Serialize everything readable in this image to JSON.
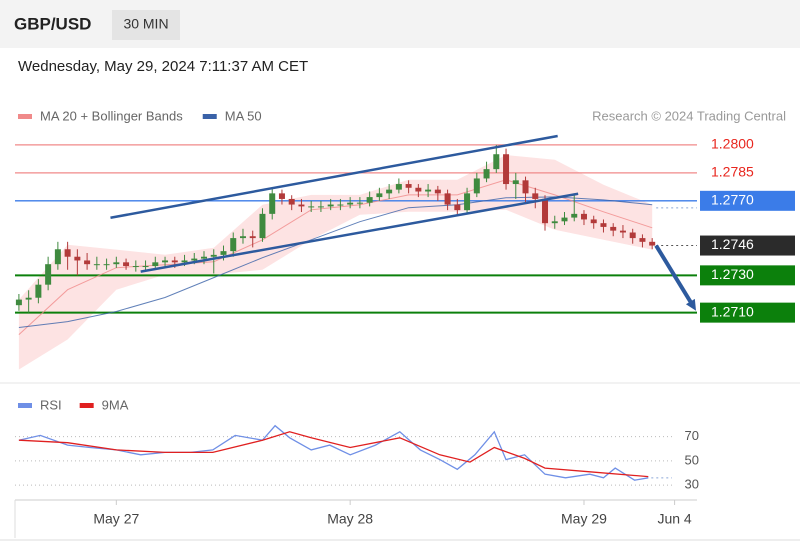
{
  "header": {
    "symbol": "GBP/USD",
    "interval": "30 MIN",
    "timestamp": "Wednesday, May 29, 2024 7:11:37 AM CET"
  },
  "chart_data": [
    {
      "type": "candlestick",
      "credit": "Research © 2024 Trading Central",
      "candles": {
        "up_color": "#3f8a3f",
        "down_color": "#b23a3a",
        "x": [
          -10,
          -9,
          -8,
          -7,
          -6,
          -5,
          -4,
          -3,
          -2,
          -1,
          0,
          1,
          2,
          3,
          4,
          5,
          6,
          7,
          8,
          9,
          10,
          11,
          12,
          13,
          14,
          15,
          16,
          17,
          18,
          19,
          20,
          21,
          22,
          23,
          24,
          25,
          26,
          27,
          28,
          29,
          30,
          31,
          32,
          33,
          34,
          35,
          36,
          37,
          38,
          39,
          40,
          41,
          42,
          43,
          44,
          45,
          46,
          47,
          48,
          49,
          50,
          51,
          52,
          53,
          54,
          55
        ],
        "open": [
          1.2714,
          1.2717,
          1.2718,
          1.2725,
          1.2736,
          1.2744,
          1.274,
          1.2738,
          1.2736,
          1.2736,
          1.2736,
          1.2737,
          1.2735,
          1.2735,
          1.2735,
          1.2737,
          1.2738,
          1.2737,
          1.2738,
          1.2739,
          1.274,
          1.2741,
          1.2743,
          1.275,
          1.2751,
          1.275,
          1.2763,
          1.2774,
          1.2771,
          1.2768,
          1.2767,
          1.2767,
          1.2767,
          1.2768,
          1.2768,
          1.2769,
          1.2769,
          1.2772,
          1.2774,
          1.2776,
          1.2779,
          1.2777,
          1.2775,
          1.2776,
          1.2774,
          1.2768,
          1.2765,
          1.2774,
          1.2782,
          1.2787,
          1.2795,
          1.2779,
          1.2781,
          1.2774,
          1.2771,
          1.2758,
          1.2759,
          1.2761,
          1.2763,
          1.276,
          1.2758,
          1.2756,
          1.2754,
          1.2753,
          1.275,
          1.2748
        ],
        "high": [
          1.272,
          1.2722,
          1.2728,
          1.274,
          1.2748,
          1.2748,
          1.2744,
          1.2742,
          1.274,
          1.2739,
          1.274,
          1.2739,
          1.2738,
          1.2738,
          1.274,
          1.274,
          1.274,
          1.2741,
          1.2742,
          1.2743,
          1.2744,
          1.2746,
          1.2753,
          1.2755,
          1.2754,
          1.2766,
          1.2777,
          1.2776,
          1.2773,
          1.2771,
          1.277,
          1.277,
          1.2771,
          1.2771,
          1.2772,
          1.2772,
          1.2775,
          1.2777,
          1.2779,
          1.2782,
          1.2781,
          1.2779,
          1.2779,
          1.2778,
          1.2776,
          1.2771,
          1.2777,
          1.2785,
          1.2791,
          1.28,
          1.2798,
          1.2785,
          1.2783,
          1.2777,
          1.2773,
          1.2762,
          1.2764,
          1.2774,
          1.2765,
          1.2762,
          1.276,
          1.2758,
          1.2757,
          1.2755,
          1.2752,
          1.275
        ],
        "low": [
          1.2711,
          1.271,
          1.2715,
          1.2722,
          1.2733,
          1.2733,
          1.273,
          1.2733,
          1.2733,
          1.2733,
          1.2734,
          1.2733,
          1.2732,
          1.2733,
          1.2734,
          1.2735,
          1.2734,
          1.2735,
          1.2736,
          1.2736,
          1.2731,
          1.2738,
          1.274,
          1.2747,
          1.2745,
          1.2748,
          1.276,
          1.2768,
          1.2765,
          1.2764,
          1.2764,
          1.2764,
          1.2765,
          1.2765,
          1.2766,
          1.2766,
          1.2767,
          1.277,
          1.2771,
          1.2774,
          1.2774,
          1.2772,
          1.2772,
          1.277,
          1.2765,
          1.2762,
          1.2763,
          1.2772,
          1.278,
          1.2785,
          1.2776,
          1.2771,
          1.2769,
          1.2766,
          1.2754,
          1.2755,
          1.2757,
          1.2759,
          1.2757,
          1.2755,
          1.2753,
          1.2751,
          1.275,
          1.2747,
          1.2745,
          1.2744
        ],
        "close": [
          1.2717,
          1.2718,
          1.2725,
          1.2736,
          1.2744,
          1.274,
          1.2738,
          1.2736,
          1.2736,
          1.2736,
          1.2737,
          1.2735,
          1.2735,
          1.2735,
          1.2737,
          1.2738,
          1.2737,
          1.2738,
          1.2739,
          1.274,
          1.2741,
          1.2743,
          1.275,
          1.2751,
          1.275,
          1.2763,
          1.2774,
          1.2771,
          1.2768,
          1.2767,
          1.2767,
          1.2767,
          1.2768,
          1.2768,
          1.2769,
          1.2769,
          1.2772,
          1.2774,
          1.2776,
          1.2779,
          1.2777,
          1.2775,
          1.2776,
          1.2774,
          1.2768,
          1.2765,
          1.2774,
          1.2782,
          1.2787,
          1.2795,
          1.2779,
          1.2781,
          1.2774,
          1.2771,
          1.2758,
          1.2759,
          1.2761,
          1.2763,
          1.276,
          1.2758,
          1.2756,
          1.2754,
          1.2753,
          1.275,
          1.2748,
          1.2746
        ]
      },
      "series": [
        {
          "name": "MA 20 + Bollinger Bands",
          "color": "#f08a8a",
          "band_color": "#fde3e3",
          "x": [
            -10,
            -5,
            0,
            5,
            10,
            15,
            20,
            25,
            30,
            35,
            40,
            45,
            50,
            55
          ],
          "values": [
            1.26982,
            1.27223,
            1.27341,
            1.27357,
            1.27373,
            1.27491,
            1.27652,
            1.27679,
            1.27732,
            1.27732,
            1.27813,
            1.27732,
            1.27641,
            1.27555
          ],
          "upper": [
            1.2717,
            1.27464,
            1.27438,
            1.27411,
            1.27448,
            1.27679,
            1.27732,
            1.27732,
            1.27813,
            1.27813,
            1.27946,
            1.2792,
            1.27786,
            1.27679
          ],
          "lower": [
            1.26795,
            1.26956,
            1.27223,
            1.27304,
            1.27304,
            1.2733,
            1.27491,
            1.27625,
            1.27641,
            1.27641,
            1.27652,
            1.27545,
            1.27491,
            1.27438
          ]
        },
        {
          "name": "MA 50",
          "color": "#3a62a8",
          "x": [
            -10,
            -5,
            0,
            5,
            10,
            15,
            20,
            25,
            30,
            35,
            40,
            45,
            50,
            55
          ],
          "values": [
            1.2702,
            1.27052,
            1.27106,
            1.27181,
            1.27288,
            1.27395,
            1.27491,
            1.27588,
            1.27663,
            1.27679,
            1.27716,
            1.27721,
            1.27705,
            1.27679
          ]
        }
      ],
      "levels": [
        {
          "value": 1.28,
          "label": "1.2800",
          "color": "#f08a8a",
          "text_color": "#e8261e",
          "box": false,
          "line": "solid"
        },
        {
          "value": 1.2785,
          "label": "1.2785",
          "color": "#f08a8a",
          "text_color": "#e8261e",
          "box": false,
          "line": "solid"
        },
        {
          "value": 1.277,
          "label": "1.2770",
          "color": "#3b7ce8",
          "text_color": "#ffffff",
          "box": true,
          "line": "solid"
        },
        {
          "value": 1.2746,
          "label": "1.2746",
          "color": "#2b2b2b",
          "text_color": "#ffffff",
          "box": true,
          "line": "extension"
        },
        {
          "value": 1.273,
          "label": "1.2730",
          "color": "#0c800c",
          "text_color": "#ffffff",
          "box": true,
          "line": "solid"
        },
        {
          "value": 1.271,
          "label": "1.2710",
          "color": "#0c800c",
          "text_color": "#ffffff",
          "box": true,
          "line": "solid"
        }
      ],
      "trendline_color": "#2d5a9e",
      "trendlines": [
        {
          "x": [
            -0.6,
            45.3
          ],
          "values": [
            1.27609,
            1.28048
          ]
        },
        {
          "x": [
            2.5,
            47.4
          ],
          "values": [
            1.2732,
            1.27738
          ]
        }
      ],
      "arrow": {
        "x": [
          55.4,
          59.5
        ],
        "values": [
          1.2746,
          1.2711
        ]
      },
      "xlim": [
        -10.4,
        59.6
      ],
      "ylim": [
        1.2676,
        1.2808
      ]
    },
    {
      "type": "line",
      "series": [
        {
          "name": "RSI",
          "color": "#6f8fe6",
          "x": [
            -10,
            -7.8,
            -5,
            -2.7,
            0,
            2.5,
            5,
            7.6,
            9.9,
            12.2,
            15,
            16.3,
            17.8,
            20,
            21.9,
            24,
            26.6,
            29.1,
            31.2,
            33.2,
            35,
            36.8,
            38.8,
            40,
            41.9,
            44,
            46.1,
            48.6,
            50,
            51.2,
            53.2,
            54.6
          ],
          "values": [
            67,
            71,
            63,
            61,
            59,
            55,
            57,
            57,
            59,
            71,
            67,
            79,
            69,
            59,
            63,
            55,
            63,
            74,
            59,
            51,
            43,
            55,
            74,
            51,
            55,
            39,
            36,
            39,
            36,
            44,
            34,
            36
          ]
        },
        {
          "name": "9MA",
          "color": "#e02020",
          "x": [
            -10,
            -5,
            0,
            5,
            9.9,
            15,
            17.8,
            20,
            24,
            29.1,
            33.2,
            36.3,
            38.8,
            41.9,
            44,
            48.6,
            54.6
          ],
          "values": [
            67,
            65,
            59,
            57,
            57,
            67,
            74,
            69,
            61,
            69,
            55,
            49,
            61,
            52,
            44,
            41,
            37
          ]
        }
      ],
      "xlim": [
        -10.4,
        59.6
      ],
      "xticks": [
        {
          "value": 0,
          "label": "May 27"
        },
        {
          "value": 24,
          "label": "May 28"
        },
        {
          "value": 48,
          "label": "May 29"
        },
        {
          "value": 57.3,
          "label": "Jun 4"
        }
      ],
      "ylim": [
        21,
        87
      ],
      "yticks": [
        70,
        50,
        30
      ],
      "grid": true
    }
  ]
}
